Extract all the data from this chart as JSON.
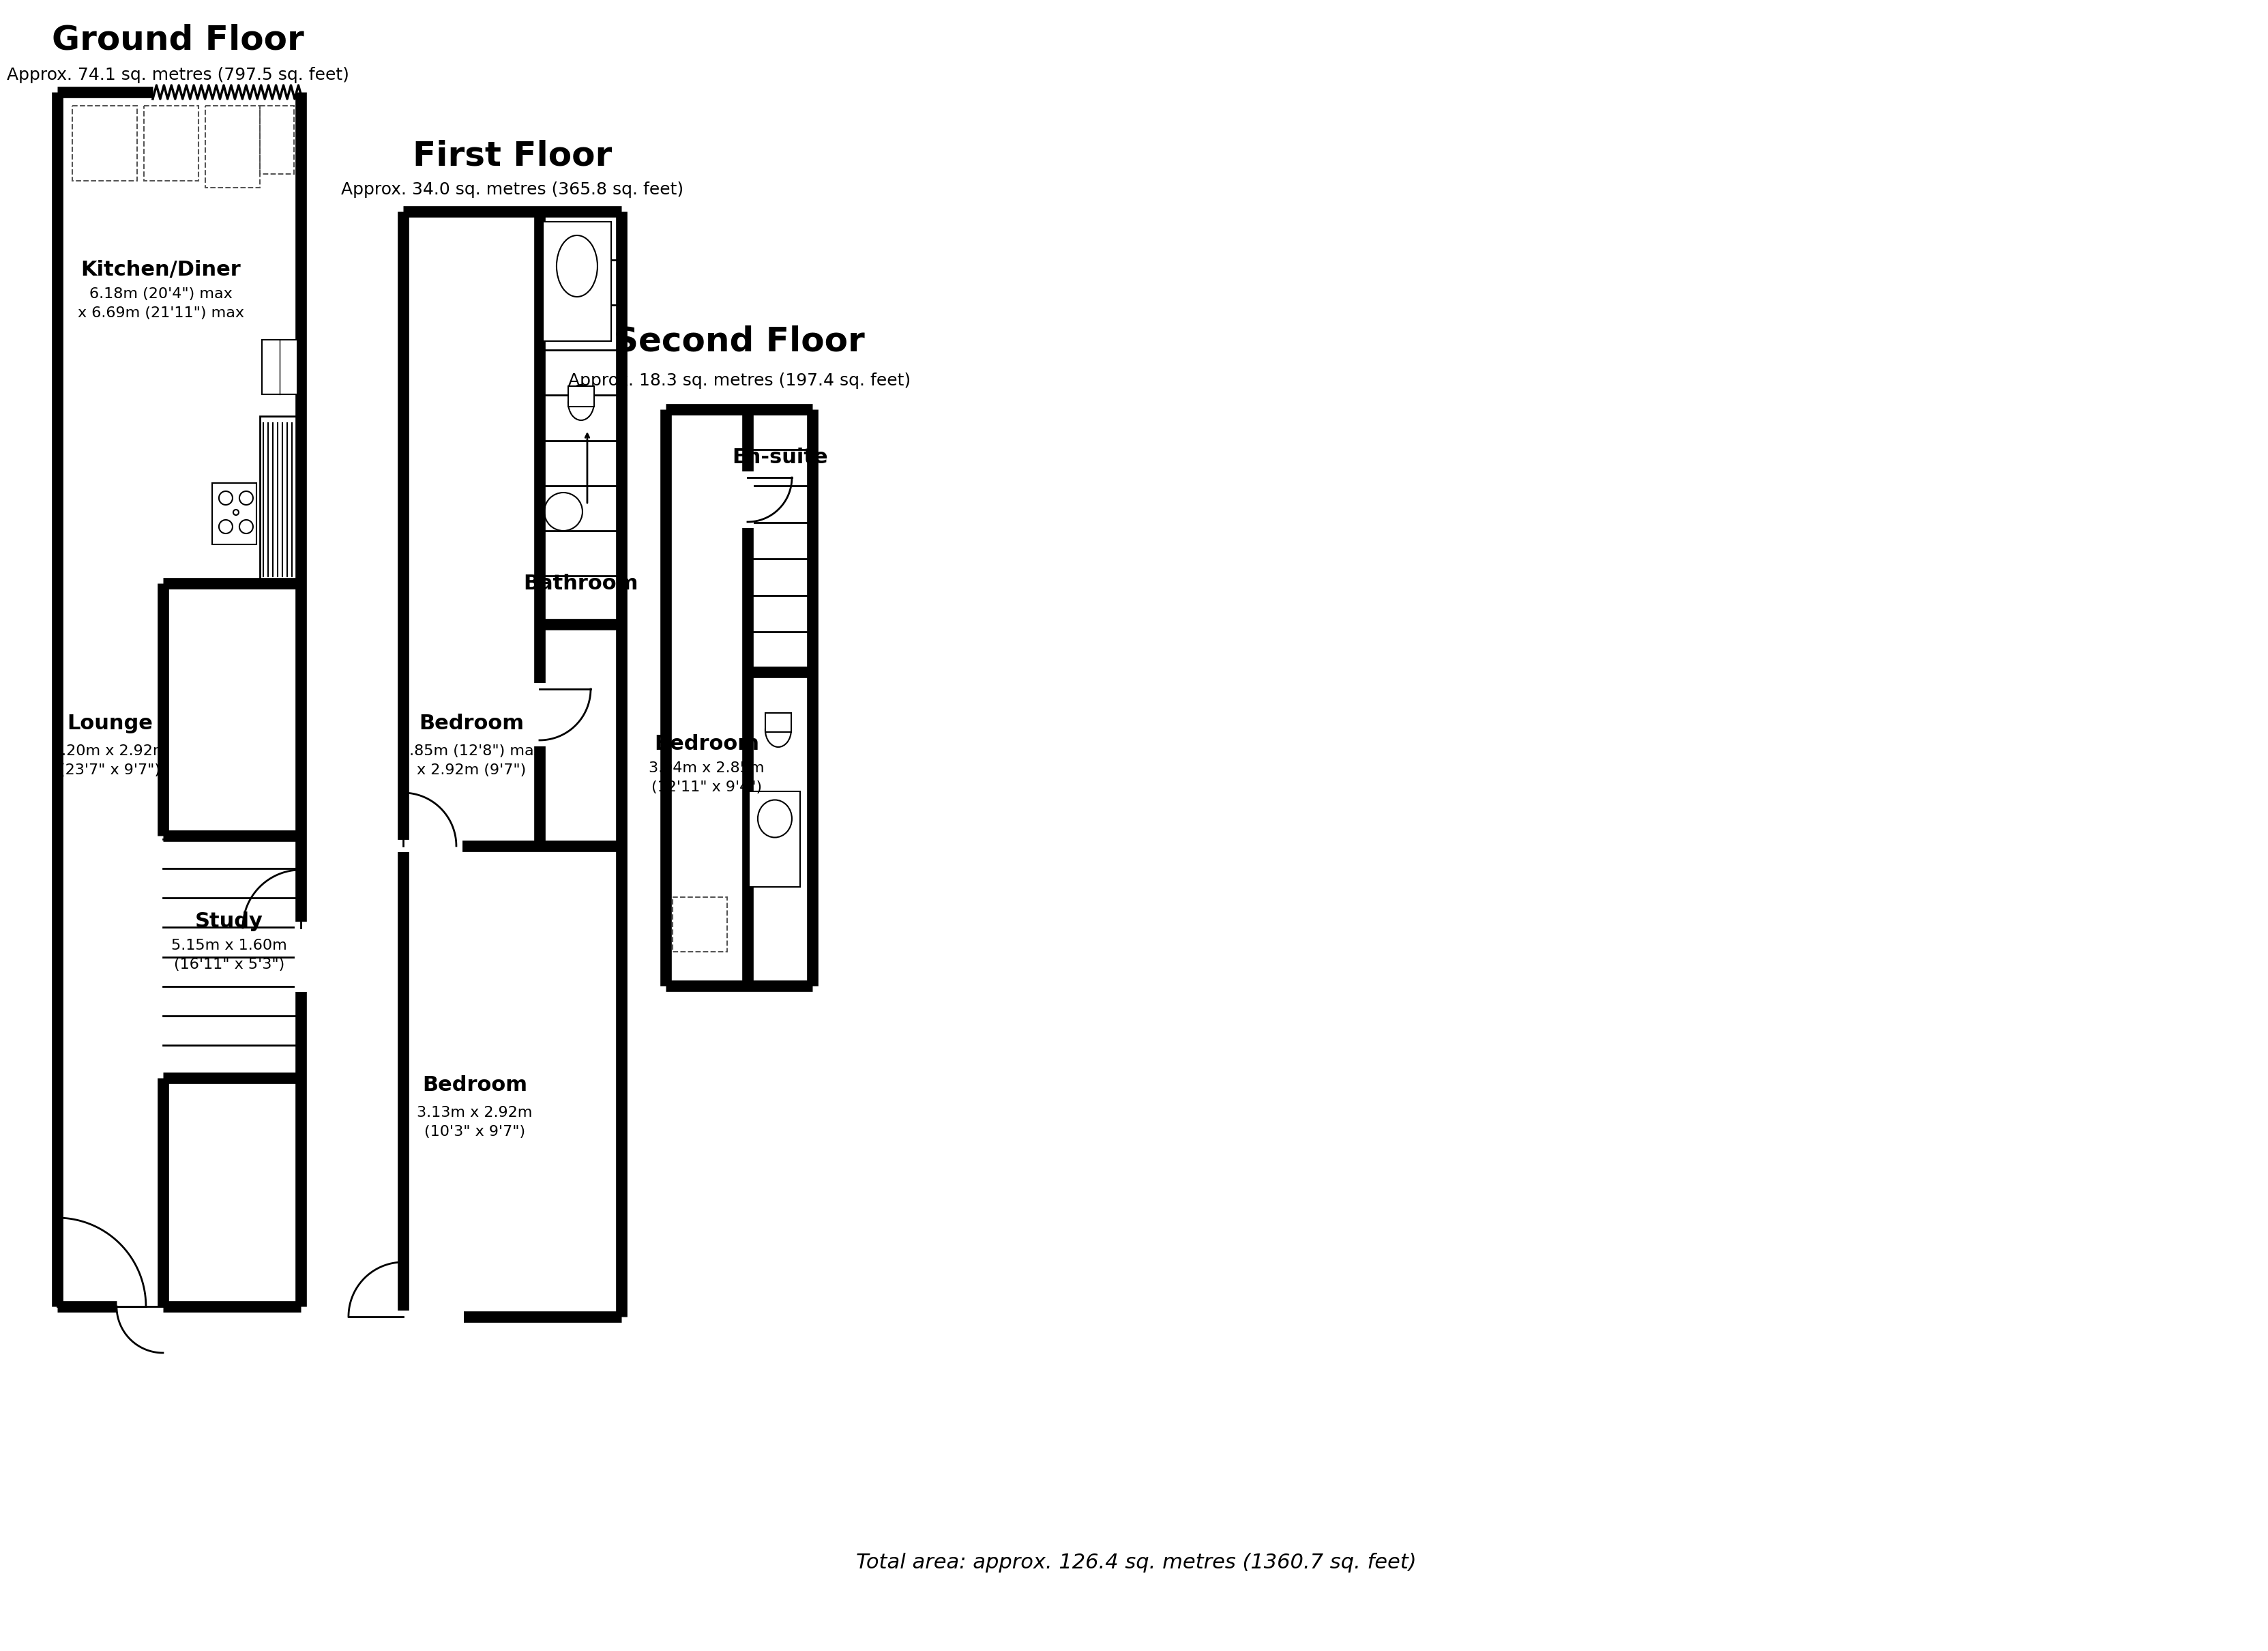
{
  "bg_color": "#ffffff",
  "title_fontsize": 36,
  "subtitle_fontsize": 18,
  "room_name_fontsize": 22,
  "room_dim_fontsize": 16,
  "total_fontsize": 22,
  "ground_floor_title": "Ground Floor",
  "ground_floor_subtitle": "Approx. 74.1 sq. metres (797.5 sq. feet)",
  "first_floor_title": "First Floor",
  "first_floor_subtitle": "Approx. 34.0 sq. metres (365.8 sq. feet)",
  "second_floor_title": "Second Floor",
  "second_floor_subtitle": "Approx. 18.3 sq. metres (197.4 sq. feet)",
  "total_area": "Total area: approx. 126.4 sq. metres (1360.7 sq. feet)",
  "kitchen_name": "Kitchen/Diner",
  "kitchen_dim": "6.18m (20'4\") max\nx 6.69m (21'11\") max",
  "lounge_name": "Lounge",
  "lounge_dim": "7.20m x 2.92m\n(23'7\" x 9'7\")",
  "study_name": "Study",
  "study_dim": "5.15m x 1.60m\n(16'11\" x 5'3\")",
  "ff_bed1_name": "Bedroom",
  "ff_bed1_dim": "3.85m (12'8\") max\nx 2.92m (9'7\")",
  "bathroom_name": "Bathroom",
  "ff_bed2_name": "Bedroom",
  "ff_bed2_dim": "3.13m x 2.92m\n(10'3\" x 9'7\")",
  "sf_bed_name": "Bedroom",
  "sf_bed_dim": "3.94m x 2.85m\n(12'11\" x 9'4\")",
  "ensuite_name": "En-suite"
}
